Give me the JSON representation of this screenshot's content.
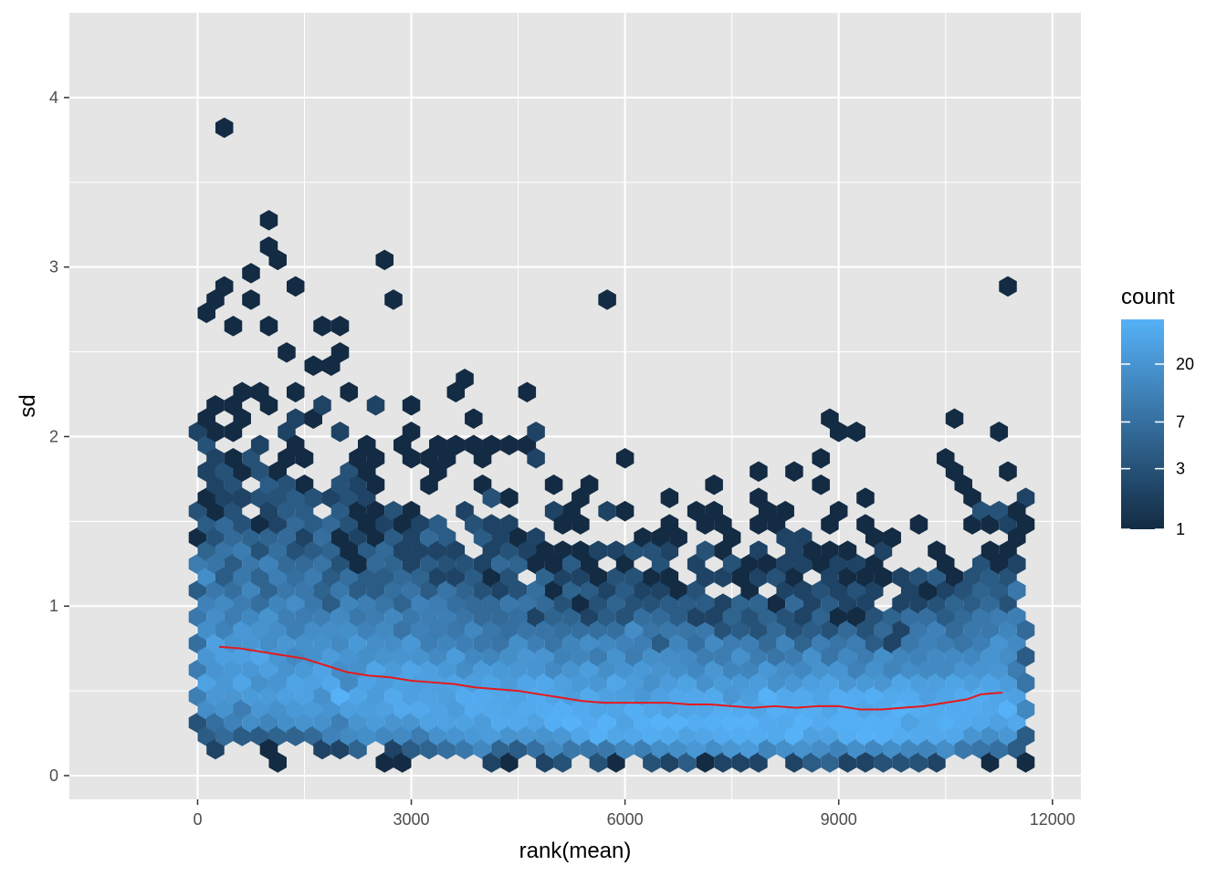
{
  "chart_data": {
    "type": "hexbin",
    "xlabel": "rank(mean)",
    "ylabel": "sd",
    "xlim": [
      -1800,
      12400
    ],
    "ylim": [
      -0.14,
      4.5
    ],
    "x_ticks": [
      0,
      3000,
      6000,
      9000,
      12000
    ],
    "x_tick_labels": [
      "0",
      "3000",
      "6000",
      "9000",
      "12000"
    ],
    "y_ticks": [
      0,
      1,
      2,
      3,
      4
    ],
    "y_tick_labels": [
      "0",
      "1",
      "2",
      "3",
      "4"
    ],
    "grid": true,
    "background": "#e5e5e5",
    "n_points": 11600,
    "legend": {
      "title": "count",
      "position": "right",
      "scale": "log",
      "breaks": [
        1,
        3,
        7,
        20
      ],
      "break_labels": [
        "1",
        "3",
        "7",
        "20"
      ],
      "max_count": 45,
      "low_color": "#132b43",
      "high_color": "#56b1f7"
    },
    "trend_line": {
      "color": "#e41a1c",
      "x": [
        300,
        600,
        900,
        1200,
        1500,
        1800,
        2100,
        2400,
        2700,
        3000,
        3300,
        3600,
        3900,
        4200,
        4500,
        4800,
        5100,
        5400,
        5700,
        6000,
        6300,
        6600,
        6900,
        7200,
        7500,
        7800,
        8100,
        8400,
        8700,
        9000,
        9300,
        9600,
        9900,
        10200,
        10500,
        10800,
        11000,
        11300
      ],
      "y": [
        0.76,
        0.75,
        0.73,
        0.71,
        0.69,
        0.65,
        0.61,
        0.59,
        0.58,
        0.56,
        0.55,
        0.54,
        0.52,
        0.51,
        0.5,
        0.48,
        0.46,
        0.44,
        0.43,
        0.43,
        0.43,
        0.43,
        0.42,
        0.42,
        0.41,
        0.4,
        0.41,
        0.4,
        0.41,
        0.41,
        0.39,
        0.39,
        0.4,
        0.41,
        0.43,
        0.45,
        0.48,
        0.49
      ]
    }
  }
}
